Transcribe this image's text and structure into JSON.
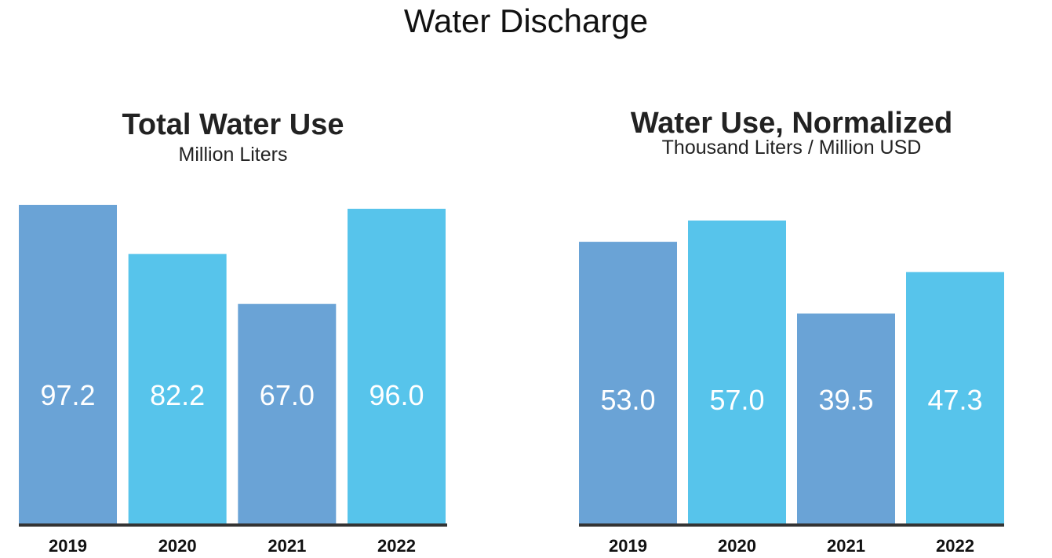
{
  "page": {
    "title": "Water Discharge"
  },
  "colors": {
    "dark_bar": "#6aa3d6",
    "light_bar": "#57c4eb",
    "axis": "#333333"
  },
  "chart_data": [
    {
      "type": "bar",
      "title": "Total Water Use",
      "subtitle": "Million Liters",
      "categories": [
        "2019",
        "2020",
        "2021",
        "2022"
      ],
      "values": [
        97.2,
        82.2,
        67.0,
        96.0
      ],
      "value_labels": [
        "97.2",
        "82.2",
        "67.0",
        "96.0"
      ],
      "ylim": [
        0,
        97.2
      ],
      "grid": false
    },
    {
      "type": "bar",
      "title": "Water Use, Normalized",
      "subtitle": "Thousand Liters / Million USD",
      "categories": [
        "2019",
        "2020",
        "2021",
        "2022"
      ],
      "values": [
        53.0,
        57.0,
        39.5,
        47.3
      ],
      "value_labels": [
        "53.0",
        "57.0",
        "39.5",
        "47.3"
      ],
      "ylim": [
        0,
        57.0
      ],
      "grid": false
    }
  ]
}
